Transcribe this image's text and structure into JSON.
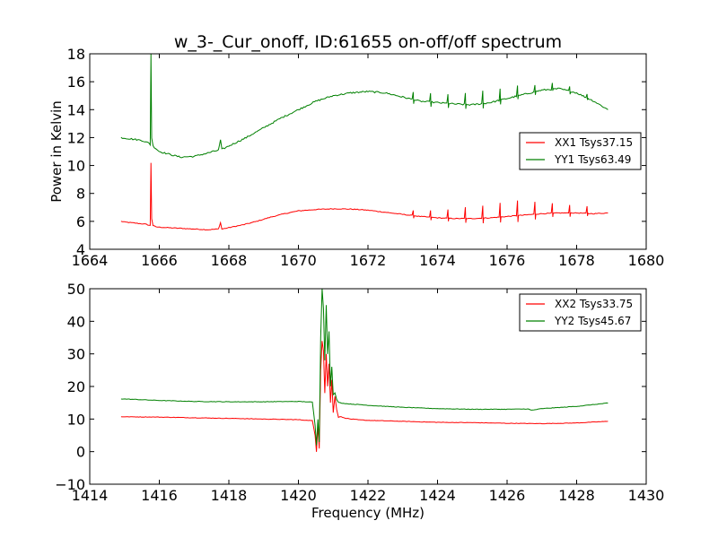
{
  "title": "w_3-_Cur_onoff, ID:61655 on-off/off spectrum",
  "colors": {
    "xx": "#ff0000",
    "yy": "#008000",
    "frame": "#000000"
  },
  "chart_data": [
    {
      "type": "line",
      "xlabel": "",
      "ylabel": "Power in Kelvin",
      "xlim": [
        1664,
        1680
      ],
      "ylim": [
        4,
        18
      ],
      "xticks": [
        1664,
        1666,
        1668,
        1670,
        1672,
        1674,
        1676,
        1678,
        1680
      ],
      "yticks": [
        4,
        6,
        8,
        10,
        12,
        14,
        16,
        18
      ],
      "legend": "center-right",
      "grid": false,
      "series": [
        {
          "name": "XX1 Tsys37.15",
          "color": "#ff0000",
          "x": [
            1664.9,
            1665.0,
            1665.2,
            1665.4,
            1665.6,
            1665.74,
            1665.76,
            1665.78,
            1665.82,
            1665.9,
            1666.2,
            1666.6,
            1667.0,
            1667.4,
            1667.7,
            1667.76,
            1667.8,
            1668.0,
            1668.4,
            1668.8,
            1669.2,
            1669.6,
            1670.0,
            1670.5,
            1671.0,
            1671.5,
            1672.0,
            1672.5,
            1673.0,
            1673.5,
            1674.0,
            1674.5,
            1675.0,
            1675.5,
            1676.0,
            1676.5,
            1677.0,
            1677.5,
            1678.0,
            1678.5,
            1678.9
          ],
          "y": [
            6.0,
            5.95,
            5.9,
            5.85,
            5.8,
            5.7,
            10.2,
            6.2,
            5.7,
            5.6,
            5.55,
            5.5,
            5.45,
            5.4,
            5.45,
            5.9,
            5.45,
            5.55,
            5.75,
            6.0,
            6.3,
            6.55,
            6.75,
            6.85,
            6.9,
            6.88,
            6.8,
            6.65,
            6.5,
            6.35,
            6.25,
            6.2,
            6.2,
            6.25,
            6.35,
            6.45,
            6.55,
            6.6,
            6.6,
            6.55,
            6.6
          ]
        },
        {
          "name": "YY1 Tsys63.49",
          "color": "#008000",
          "x": [
            1664.9,
            1665.2,
            1665.5,
            1665.7,
            1665.74,
            1665.76,
            1665.78,
            1665.82,
            1666.0,
            1666.3,
            1666.6,
            1667.0,
            1667.4,
            1667.7,
            1667.76,
            1667.8,
            1668.0,
            1668.5,
            1669.0,
            1669.5,
            1670.0,
            1670.5,
            1671.0,
            1671.5,
            1672.0,
            1672.5,
            1673.0,
            1673.5,
            1674.0,
            1674.5,
            1675.0,
            1675.5,
            1676.0,
            1676.5,
            1677.0,
            1677.5,
            1678.0,
            1678.5,
            1678.9
          ],
          "y": [
            12.0,
            11.9,
            11.8,
            11.6,
            11.5,
            18.0,
            12.0,
            11.4,
            11.0,
            10.8,
            10.6,
            10.65,
            10.9,
            11.1,
            11.8,
            11.15,
            11.4,
            12.0,
            12.7,
            13.4,
            14.0,
            14.6,
            15.0,
            15.2,
            15.3,
            15.2,
            14.9,
            14.6,
            14.5,
            14.4,
            14.35,
            14.5,
            14.8,
            15.1,
            15.4,
            15.5,
            15.2,
            14.6,
            14.0
          ]
        }
      ],
      "spikes": [
        {
          "x": 1673.3,
          "xx": 0.4,
          "yy": 0.6
        },
        {
          "x": 1673.8,
          "xx": 0.5,
          "yy": 0.7
        },
        {
          "x": 1674.3,
          "xx": 0.6,
          "yy": 0.7
        },
        {
          "x": 1674.8,
          "xx": 0.8,
          "yy": 0.8
        },
        {
          "x": 1675.3,
          "xx": 0.9,
          "yy": 0.9
        },
        {
          "x": 1675.8,
          "xx": 1.0,
          "yy": 0.8
        },
        {
          "x": 1676.3,
          "xx": 1.1,
          "yy": 0.7
        },
        {
          "x": 1676.8,
          "xx": 0.9,
          "yy": 0.5
        },
        {
          "x": 1677.3,
          "xx": 0.7,
          "yy": 0.4
        },
        {
          "x": 1677.8,
          "xx": 0.6,
          "yy": 0.4
        },
        {
          "x": 1678.3,
          "xx": 0.5,
          "yy": 0.3
        }
      ]
    },
    {
      "type": "line",
      "xlabel": "Frequency (MHz)",
      "ylabel": "",
      "xlim": [
        1414,
        1430
      ],
      "ylim": [
        -10,
        50
      ],
      "xticks": [
        1414,
        1416,
        1418,
        1420,
        1422,
        1424,
        1426,
        1428,
        1430
      ],
      "yticks": [
        -10,
        0,
        10,
        20,
        30,
        40,
        50
      ],
      "ytick_labels": [
        "−10",
        "0",
        "10",
        "20",
        "30",
        "40",
        "50"
      ],
      "legend": "top-right",
      "grid": false,
      "series": [
        {
          "name": "XX2 Tsys33.75",
          "color": "#ff0000",
          "x": [
            1414.9,
            1416.0,
            1417.0,
            1418.0,
            1419.0,
            1420.0,
            1420.4,
            1420.48,
            1420.52,
            1420.56,
            1420.6,
            1420.64,
            1420.68,
            1420.72,
            1420.76,
            1420.8,
            1420.84,
            1420.88,
            1420.92,
            1420.96,
            1421.0,
            1421.05,
            1421.1,
            1421.15,
            1421.2,
            1421.3,
            1421.5,
            1421.8,
            1422.0,
            1423.0,
            1424.0,
            1425.0,
            1426.0,
            1427.0,
            1428.0,
            1428.9
          ],
          "y": [
            10.7,
            10.6,
            10.4,
            10.2,
            10.0,
            9.8,
            9.5,
            5.0,
            0.0,
            8.0,
            1.0,
            25.0,
            34.0,
            31.0,
            18.0,
            30.0,
            20.0,
            27.0,
            15.0,
            22.0,
            12.0,
            17.0,
            13.0,
            10.5,
            10.8,
            10.4,
            10.0,
            9.7,
            9.6,
            9.3,
            9.0,
            8.9,
            8.7,
            8.6,
            8.8,
            9.3
          ]
        },
        {
          "name": "YY2 Tsys45.67",
          "color": "#008000",
          "x": [
            1414.9,
            1416.0,
            1417.0,
            1418.0,
            1419.0,
            1420.0,
            1420.4,
            1420.48,
            1420.52,
            1420.56,
            1420.6,
            1420.64,
            1420.68,
            1420.72,
            1420.76,
            1420.8,
            1420.84,
            1420.88,
            1420.92,
            1420.96,
            1421.0,
            1421.05,
            1421.1,
            1421.15,
            1421.2,
            1421.3,
            1421.5,
            1421.8,
            1422.0,
            1423.0,
            1424.0,
            1425.0,
            1426.0,
            1426.6,
            1426.7,
            1427.0,
            1428.0,
            1428.9
          ],
          "y": [
            16.2,
            15.7,
            15.4,
            15.3,
            15.3,
            15.4,
            15.2,
            8.0,
            2.0,
            10.0,
            3.0,
            35.0,
            50.0,
            44.0,
            28.0,
            45.0,
            30.0,
            37.0,
            20.0,
            26.0,
            17.5,
            18.0,
            16.0,
            15.2,
            15.0,
            14.8,
            14.6,
            14.4,
            14.2,
            13.6,
            13.2,
            13.0,
            13.0,
            13.1,
            12.7,
            13.2,
            13.9,
            14.9
          ]
        }
      ]
    }
  ]
}
